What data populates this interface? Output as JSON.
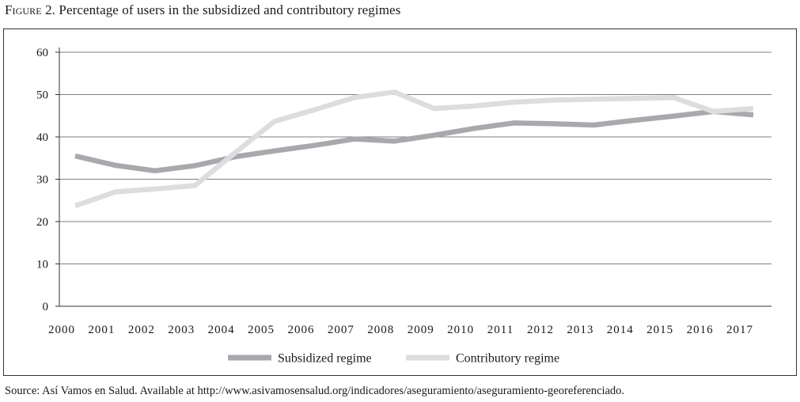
{
  "caption": {
    "label": "Figure",
    "number": "2.",
    "text": "Percentage of users in the subsidized and contributory regimes"
  },
  "source": "Source: Así Vamos en Salud. Available at http://www.asivamosensalud.org/indicadores/aseguramiento/aseguramiento-georeferenciado.",
  "chart_data": {
    "type": "line",
    "title": "",
    "xlabel": "",
    "ylabel": "",
    "x": [
      "2000",
      "2001",
      "2002",
      "2003",
      "2004",
      "2005",
      "2006",
      "2007",
      "2008",
      "2009",
      "2010",
      "2011",
      "2012",
      "2013",
      "2014",
      "2015",
      "2016",
      "2017"
    ],
    "ylim": [
      0,
      60
    ],
    "yticks": [
      0,
      10,
      20,
      30,
      40,
      50,
      60
    ],
    "grid": "horizontal",
    "legend_position": "bottom",
    "series": [
      {
        "name": "Subsidized regime",
        "color": "#a7a9ac",
        "values": [
          35.5,
          33.3,
          32.0,
          33.2,
          35.3,
          36.7,
          38.0,
          39.5,
          39.0,
          40.4,
          42.0,
          43.3,
          43.1,
          42.8,
          43.9,
          44.9,
          46.0,
          45.2
        ]
      },
      {
        "name": "Contributory regime",
        "color": "#dcddde",
        "values": [
          23.7,
          27.0,
          27.7,
          28.5,
          36.2,
          43.7,
          46.4,
          49.3,
          50.6,
          46.7,
          47.3,
          48.2,
          48.7,
          48.9,
          49.1,
          49.3,
          46.0,
          46.7
        ]
      }
    ]
  }
}
